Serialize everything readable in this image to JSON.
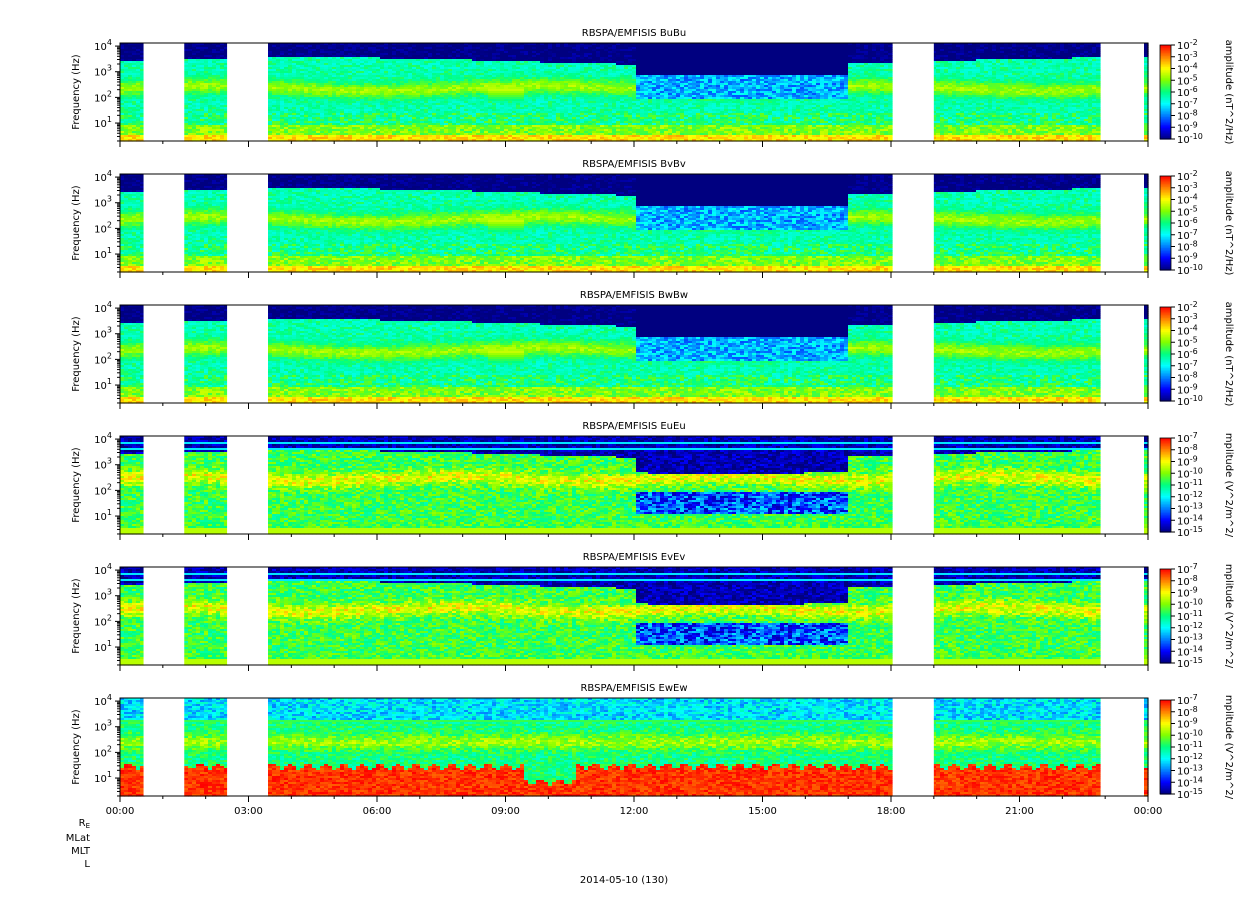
{
  "chart_data": {
    "type": "heatmap",
    "date_label": "2014-05-10 (130)",
    "x_ticks": [
      "00:00",
      "03:00",
      "06:00",
      "09:00",
      "12:00",
      "15:00",
      "18:00",
      "21:00",
      "00:00"
    ],
    "x_range_hours": [
      0,
      24
    ],
    "ephemeris_labels": [
      "R",
      "MLat",
      "MLT",
      "L"
    ],
    "re_subscript": "E",
    "y_ticks_exp": [
      1,
      2,
      3,
      4
    ],
    "data_gaps_hours": [
      [
        0.55,
        1.5
      ],
      [
        2.5,
        3.45
      ],
      [
        18.05,
        19.0
      ],
      [
        22.9,
        23.9
      ]
    ],
    "colorscale": [
      "#000080",
      "#0000ff",
      "#0080ff",
      "#00ffff",
      "#00ff80",
      "#80ff00",
      "#ffff00",
      "#ff8000",
      "#ff0000"
    ],
    "panels": [
      {
        "title": "RBSPA/EMFISIS  BuBu",
        "ylabel": "Frequency (Hz)",
        "cb_label": "amplitude (nT^2/Hz)",
        "cb_ticks": [
          "-2",
          "-3",
          "-4",
          "-5",
          "-6",
          "-7",
          "-8",
          "-9",
          "-10"
        ],
        "type": "b"
      },
      {
        "title": "RBSPA/EMFISIS  BvBv",
        "ylabel": "Frequency (Hz)",
        "cb_label": "amplitude (nT^2/Hz)",
        "cb_ticks": [
          "-2",
          "-3",
          "-4",
          "-5",
          "-6",
          "-7",
          "-8",
          "-9",
          "-10"
        ],
        "type": "b"
      },
      {
        "title": "RBSPA/EMFISIS  BwBw",
        "ylabel": "Frequency (Hz)",
        "cb_label": "amplitude (nT^2/Hz)",
        "cb_ticks": [
          "-2",
          "-3",
          "-4",
          "-5",
          "-6",
          "-7",
          "-8",
          "-9",
          "-10"
        ],
        "type": "b"
      },
      {
        "title": "RBSPA/EMFISIS  EuEu",
        "ylabel": "Frequency (Hz)",
        "cb_label": "mplitude (V^2/m^2/",
        "cb_ticks": [
          "-7",
          "-8",
          "-9",
          "-10",
          "-11",
          "-12",
          "-13",
          "-14",
          "-15"
        ],
        "type": "e"
      },
      {
        "title": "RBSPA/EMFISIS  EvEv",
        "ylabel": "Frequency (Hz)",
        "cb_label": "mplitude (V^2/m^2/",
        "cb_ticks": [
          "-7",
          "-8",
          "-9",
          "-10",
          "-11",
          "-12",
          "-13",
          "-14",
          "-15"
        ],
        "type": "e"
      },
      {
        "title": "RBSPA/EMFISIS  EwEw",
        "ylabel": "Frequency (Hz)",
        "cb_label": "mplitude (V^2/m^2/",
        "cb_ticks": [
          "-7",
          "-8",
          "-9",
          "-10",
          "-11",
          "-12",
          "-13",
          "-14",
          "-15"
        ],
        "type": "ew"
      }
    ]
  }
}
